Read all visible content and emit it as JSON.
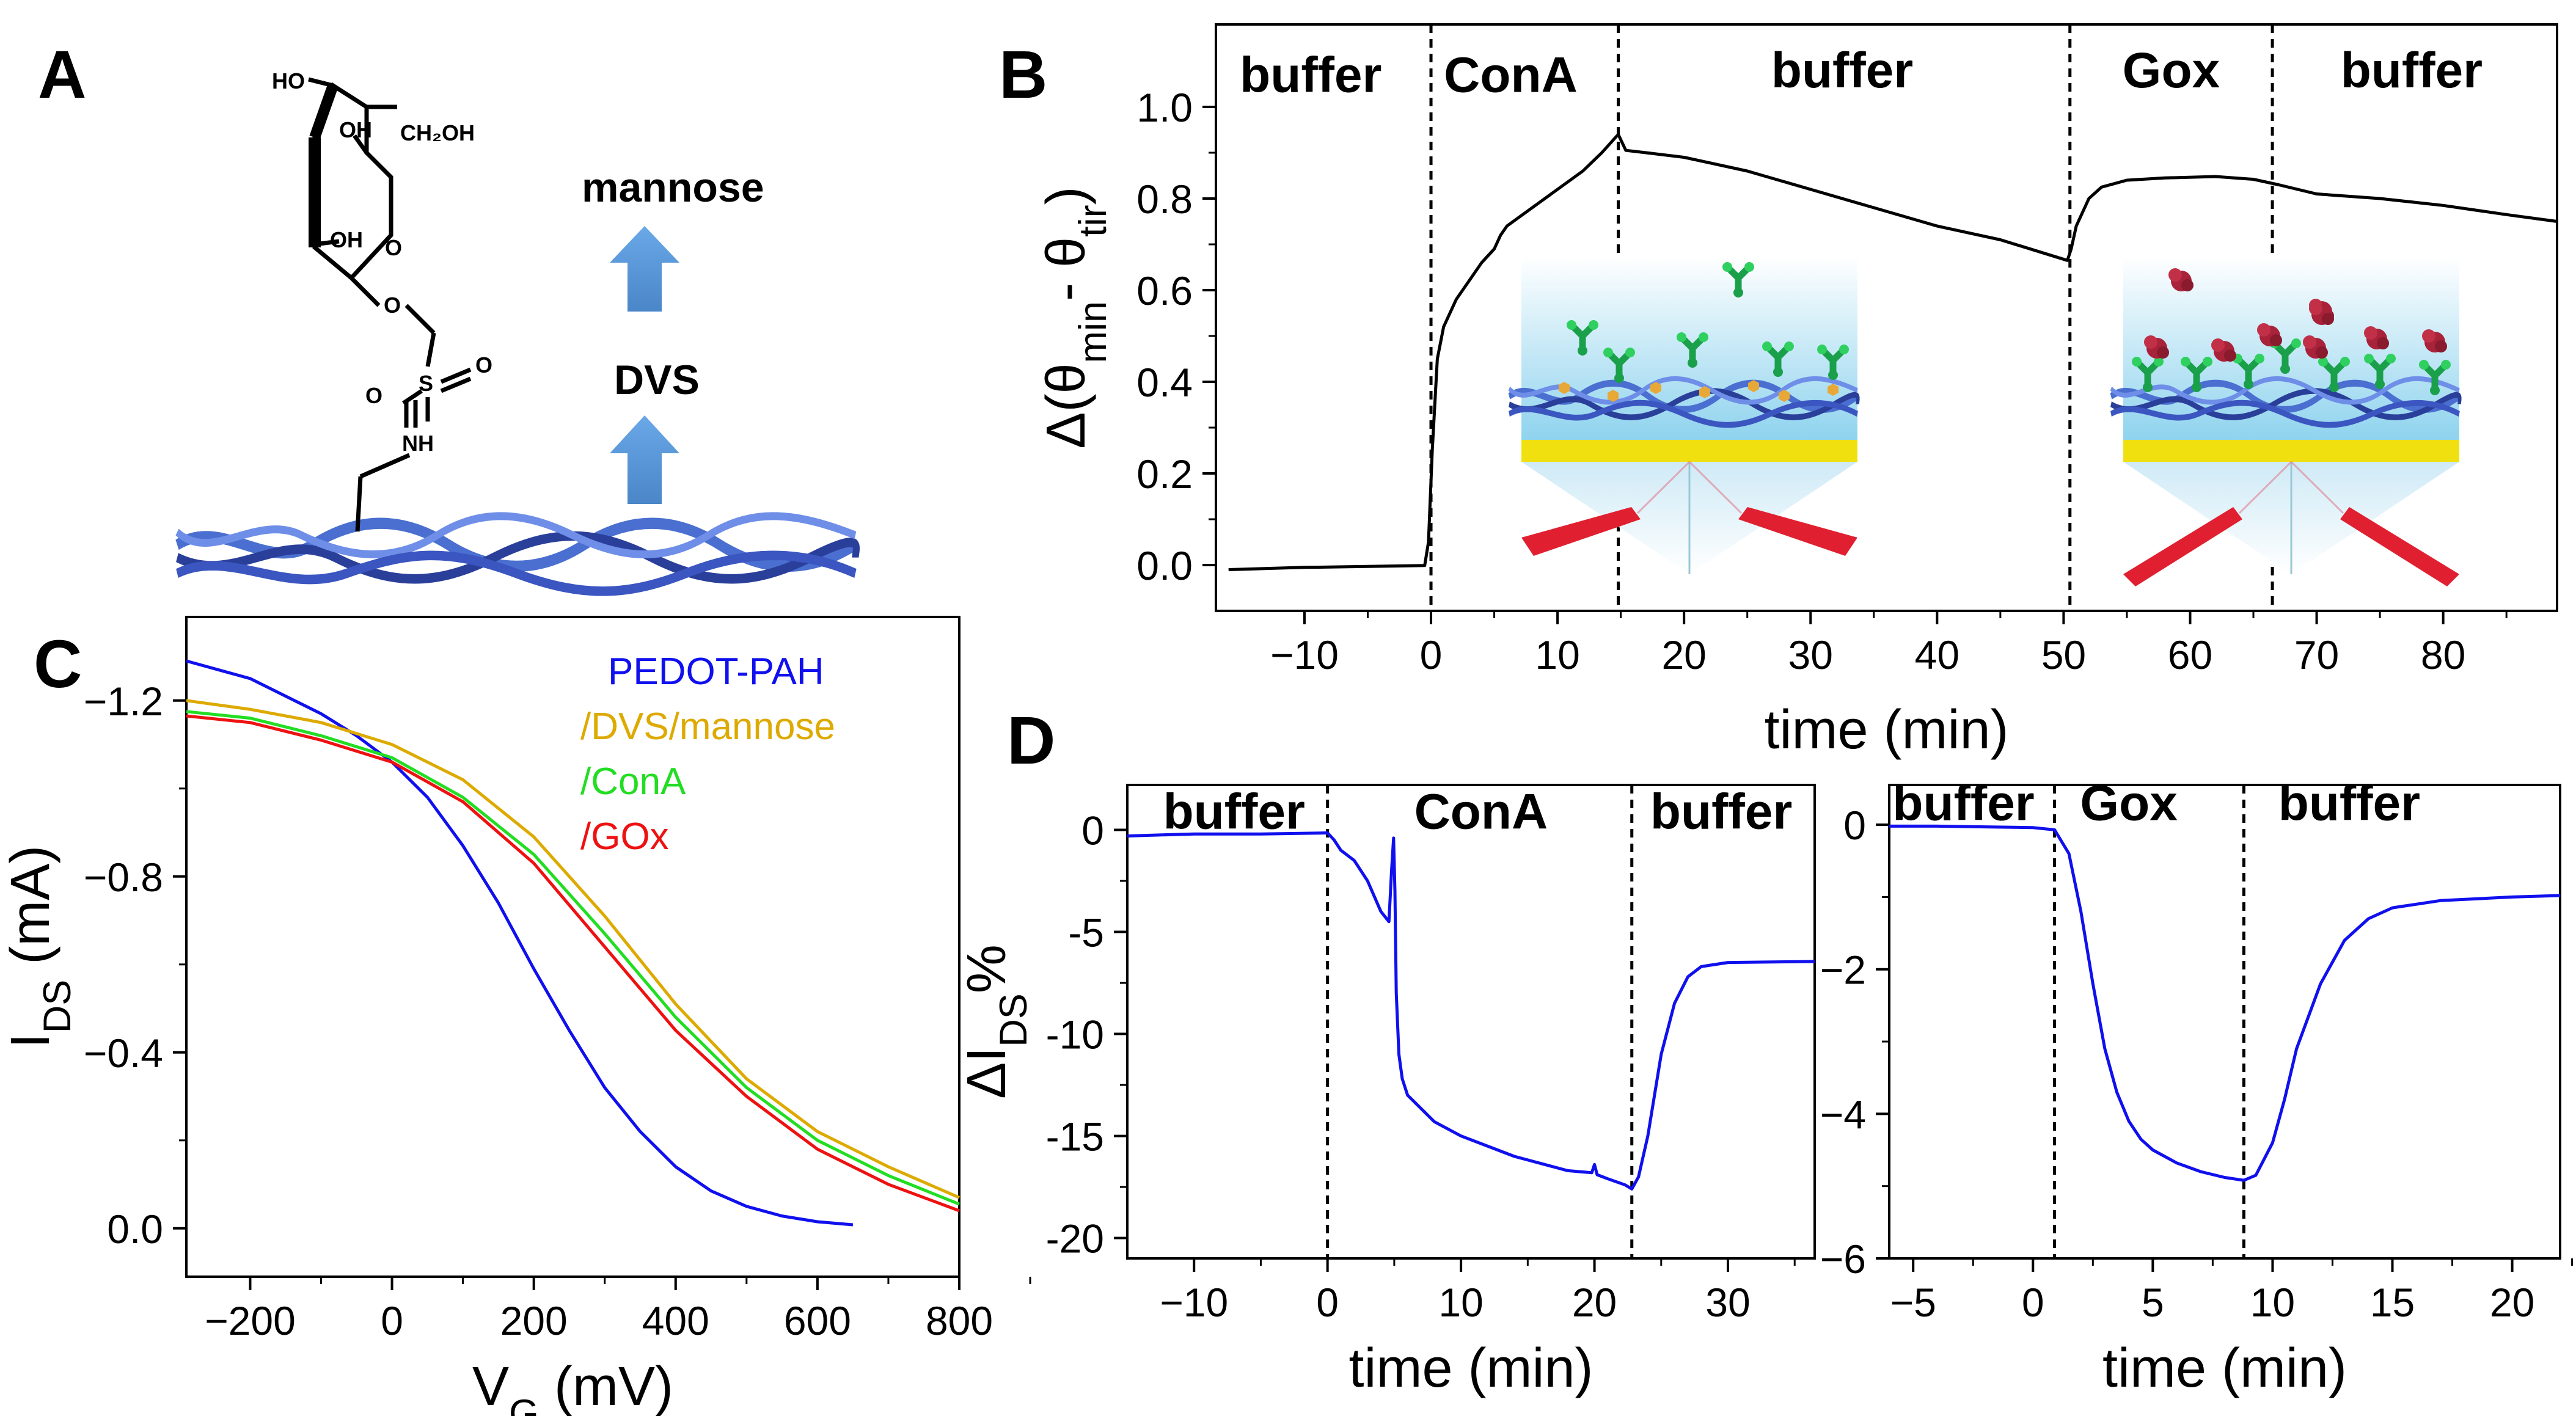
{
  "panels": {
    "a": {
      "letter": "A",
      "step_top": "mannose",
      "step_mid": "DVS",
      "chem": {
        "ho": "HO",
        "oh1": "OH",
        "oh2": "OH",
        "ch2oh": "CH₂OH",
        "o_ring": "O",
        "o_link": "O",
        "s": "S",
        "o_s1": "O",
        "o_s2": "O",
        "nh": "NH"
      }
    },
    "b": {
      "letter": "B"
    },
    "c": {
      "letter": "C"
    },
    "d": {
      "letter": "D"
    }
  },
  "colors": {
    "blue": "#1010ee",
    "gold": "#ddaa00",
    "green": "#22dd22",
    "red": "#ee1111",
    "black": "#000000",
    "arrow": "#5b9bd5"
  },
  "chart_data": [
    {
      "id": "B",
      "type": "line",
      "xlabel": "time (min)",
      "ylabel": "Δ(θmin – θtir)",
      "ylabel_parts": {
        "pre": "Δ(θ",
        "sub1": "min",
        "mid": "- θ",
        "sub2": "tir",
        "post": ")"
      },
      "xlim": [
        -17,
        89
      ],
      "ylim": [
        -0.1,
        1.18
      ],
      "xticks": [
        -10,
        0,
        10,
        20,
        30,
        40,
        50,
        60,
        70,
        80
      ],
      "yticks": [
        0.0,
        0.2,
        0.4,
        0.6,
        0.8,
        1.0
      ],
      "yticklabels": [
        "0.0",
        "0.2",
        "0.4",
        "0.6",
        "0.8",
        "1.0"
      ],
      "vlines": [
        0,
        14.8,
        50.5,
        66.5
      ],
      "regions": [
        {
          "label": "buffer",
          "x": -9.5,
          "y": 1.07
        },
        {
          "label": "ConA",
          "x": 6.3,
          "y": 1.07
        },
        {
          "label": "buffer",
          "x": 32.5,
          "y": 1.08
        },
        {
          "label": "Gox",
          "x": 58.5,
          "y": 1.08
        },
        {
          "label": "buffer",
          "x": 77.5,
          "y": 1.08
        }
      ],
      "series": [
        {
          "name": "signal",
          "color": "#000000",
          "x": [
            -16,
            -10,
            -5,
            -0.5,
            -0.2,
            0.1,
            0.5,
            1,
            2,
            3,
            4,
            5,
            5.5,
            6,
            8,
            10,
            12,
            13.5,
            14.8,
            15.4,
            17,
            20,
            25,
            30,
            35,
            40,
            45,
            50.3,
            50.6,
            51,
            52,
            53,
            55,
            58,
            62,
            65,
            67,
            70,
            75,
            80,
            85,
            89
          ],
          "y": [
            -0.01,
            -0.005,
            -0.003,
            -0.001,
            0.05,
            0.25,
            0.45,
            0.52,
            0.58,
            0.62,
            0.66,
            0.69,
            0.72,
            0.74,
            0.78,
            0.82,
            0.86,
            0.9,
            0.94,
            0.905,
            0.9,
            0.89,
            0.86,
            0.82,
            0.78,
            0.74,
            0.71,
            0.665,
            0.69,
            0.74,
            0.8,
            0.825,
            0.84,
            0.845,
            0.848,
            0.842,
            0.83,
            0.81,
            0.8,
            0.785,
            0.765,
            0.75
          ]
        }
      ]
    },
    {
      "id": "C",
      "type": "line",
      "xlabel": "VG (mV)",
      "xlabel_parts": {
        "pre": "V",
        "sub": "G",
        "post": " (mV)"
      },
      "ylabel": "IDS (mA)",
      "ylabel_parts": {
        "pre": "I",
        "sub": "DS",
        "post": " (mA)"
      },
      "xlim": [
        -290,
        800
      ],
      "ylim": [
        0.11,
        -1.39
      ],
      "xticks": [
        -200,
        0,
        200,
        400,
        600,
        800
      ],
      "yticks": [
        0.0,
        -0.4,
        -0.8,
        -1.2
      ],
      "yticklabels": [
        "0.0",
        "−0.4",
        "−0.8",
        "−1.2"
      ],
      "legend": [
        "PEDOT-PAH",
        "/DVS/mannose",
        "/ConA",
        "/GOx"
      ],
      "series": [
        {
          "name": "PEDOT-PAH",
          "color": "#1010ee",
          "x": [
            -290,
            -200,
            -100,
            -50,
            0,
            50,
            100,
            150,
            200,
            250,
            300,
            350,
            400,
            450,
            500,
            550,
            600,
            650
          ],
          "y": [
            -1.29,
            -1.25,
            -1.17,
            -1.12,
            -1.06,
            -0.98,
            -0.87,
            -0.74,
            -0.59,
            -0.45,
            -0.32,
            -0.22,
            -0.14,
            -0.085,
            -0.05,
            -0.028,
            -0.015,
            -0.008
          ]
        },
        {
          "name": "/DVS/mannose",
          "color": "#ddaa00",
          "x": [
            -290,
            -200,
            -100,
            0,
            100,
            200,
            300,
            400,
            500,
            600,
            700,
            800
          ],
          "y": [
            -1.2,
            -1.18,
            -1.15,
            -1.1,
            -1.02,
            -0.89,
            -0.71,
            -0.51,
            -0.34,
            -0.22,
            -0.14,
            -0.07
          ]
        },
        {
          "name": "/ConA",
          "color": "#22dd22",
          "x": [
            -290,
            -200,
            -100,
            0,
            100,
            200,
            300,
            400,
            500,
            600,
            700,
            800
          ],
          "y": [
            -1.175,
            -1.16,
            -1.12,
            -1.07,
            -0.98,
            -0.85,
            -0.67,
            -0.48,
            -0.32,
            -0.2,
            -0.12,
            -0.055
          ]
        },
        {
          "name": "/GOx",
          "color": "#ee1111",
          "x": [
            -290,
            -200,
            -100,
            0,
            100,
            200,
            300,
            400,
            500,
            600,
            700,
            800
          ],
          "y": [
            -1.165,
            -1.15,
            -1.11,
            -1.06,
            -0.97,
            -0.83,
            -0.64,
            -0.45,
            -0.3,
            -0.18,
            -0.1,
            -0.04
          ]
        }
      ]
    },
    {
      "id": "D1",
      "type": "line",
      "xlabel": "time (min)",
      "ylabel": "ΔIDS%",
      "ylabel_parts": {
        "pre": "ΔI",
        "sub": "DS",
        "post": "%"
      },
      "xlim": [
        -15,
        36.5
      ],
      "ylim": [
        -21,
        2.2
      ],
      "xticks": [
        -10,
        0,
        10,
        20,
        30
      ],
      "yticks": [
        0,
        -5,
        -10,
        -15,
        -20
      ],
      "yticklabels": [
        "0",
        "-5",
        "-10",
        "-15",
        "-20"
      ],
      "vlines": [
        0,
        22.8
      ],
      "regions": [
        {
          "label": "buffer",
          "x": -7,
          "y": 0.9
        },
        {
          "label": "ConA",
          "x": 11.5,
          "y": 0.9
        },
        {
          "label": "buffer",
          "x": 29.5,
          "y": 0.9
        }
      ],
      "series": [
        {
          "name": "signal",
          "color": "#1010ee",
          "x": [
            -15,
            -10,
            -5,
            0,
            0.5,
            1,
            2,
            3,
            4,
            4.6,
            4.8,
            4.95,
            5.05,
            5.15,
            5.35,
            5.6,
            6,
            8,
            10,
            14,
            18,
            19.8,
            20,
            20.2,
            21,
            22.3,
            22.8,
            23.3,
            24,
            25,
            26,
            27,
            28,
            30,
            36.5
          ],
          "y": [
            -0.3,
            -0.2,
            -0.2,
            -0.15,
            -0.5,
            -1,
            -1.5,
            -2.5,
            -4,
            -4.5,
            -2,
            -0.4,
            -3,
            -8,
            -11,
            -12.2,
            -13,
            -14.3,
            -15,
            -16,
            -16.7,
            -16.8,
            -16.4,
            -16.9,
            -17.1,
            -17.4,
            -17.6,
            -17,
            -15,
            -11,
            -8.5,
            -7.2,
            -6.7,
            -6.5,
            -6.45
          ]
        }
      ]
    },
    {
      "id": "D2",
      "type": "line",
      "xlabel": "time (min)",
      "ylabel": "",
      "xlim": [
        -6,
        22
      ],
      "ylim": [
        -6,
        0.55
      ],
      "xticks": [
        -5,
        0,
        5,
        10,
        15,
        20
      ],
      "yticks": [
        0,
        -2,
        -4,
        -6
      ],
      "yticklabels": [
        "0",
        "−2",
        "−4",
        "−6"
      ],
      "vlines": [
        0.9,
        8.8
      ],
      "regions": [
        {
          "label": "buffer",
          "x": -2.9,
          "y": 0.3
        },
        {
          "label": "Gox",
          "x": 4,
          "y": 0.3
        },
        {
          "label": "buffer",
          "x": 13.2,
          "y": 0.3
        }
      ],
      "series": [
        {
          "name": "signal",
          "color": "#1010ee",
          "x": [
            -6,
            -4,
            -2,
            0,
            0.9,
            1.5,
            2,
            2.5,
            3,
            3.5,
            4,
            4.5,
            5,
            6,
            7,
            8,
            8.8,
            9.3,
            10,
            10.5,
            11,
            12,
            13,
            14,
            15,
            17,
            20,
            22
          ],
          "y": [
            -0.02,
            -0.02,
            -0.03,
            -0.04,
            -0.07,
            -0.4,
            -1.2,
            -2.2,
            -3.1,
            -3.7,
            -4.1,
            -4.35,
            -4.5,
            -4.68,
            -4.8,
            -4.88,
            -4.92,
            -4.85,
            -4.4,
            -3.8,
            -3.1,
            -2.2,
            -1.6,
            -1.3,
            -1.15,
            -1.05,
            -1.0,
            -0.98
          ]
        }
      ]
    }
  ]
}
